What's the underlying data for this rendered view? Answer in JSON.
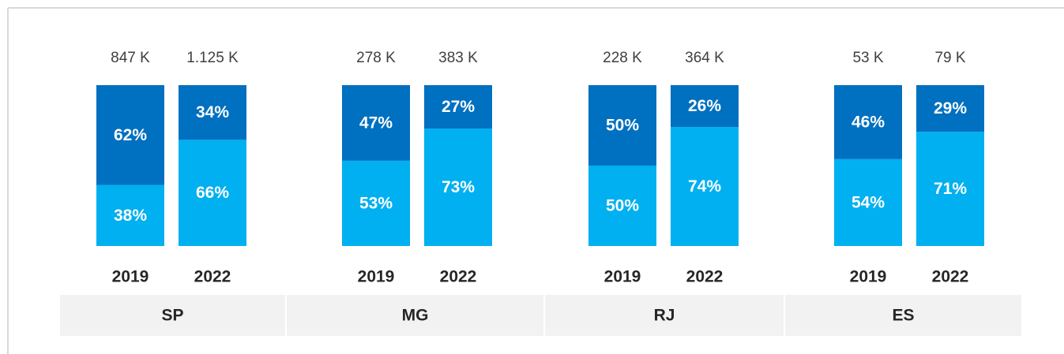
{
  "chart_data": {
    "type": "stacked_bar_100",
    "groups": [
      "SP",
      "MG",
      "RJ",
      "ES"
    ],
    "categories": [
      "2019",
      "2022",
      "2019",
      "2022",
      "2019",
      "2022",
      "2019",
      "2022"
    ],
    "totals": [
      847,
      1125,
      278,
      383,
      228,
      364,
      53,
      79
    ],
    "total_labels": [
      "847 K",
      "1.125 K",
      "278 K",
      "383 K",
      "228 K",
      "364 K",
      "53 K",
      "79 K"
    ],
    "ylim": [
      0,
      100
    ],
    "series": [
      {
        "color": "#00b0f0",
        "values": [
          38,
          66,
          53,
          73,
          50,
          74,
          54,
          71
        ],
        "value_labels": [
          "38%",
          "66%",
          "53%",
          "73%",
          "50%",
          "74%",
          "54%",
          "71%"
        ]
      },
      {
        "color": "#0070c0",
        "values": [
          62,
          34,
          47,
          27,
          50,
          26,
          46,
          29
        ],
        "value_labels": [
          "62%",
          "34%",
          "47%",
          "27%",
          "50%",
          "26%",
          "46%",
          "29%"
        ]
      }
    ]
  }
}
